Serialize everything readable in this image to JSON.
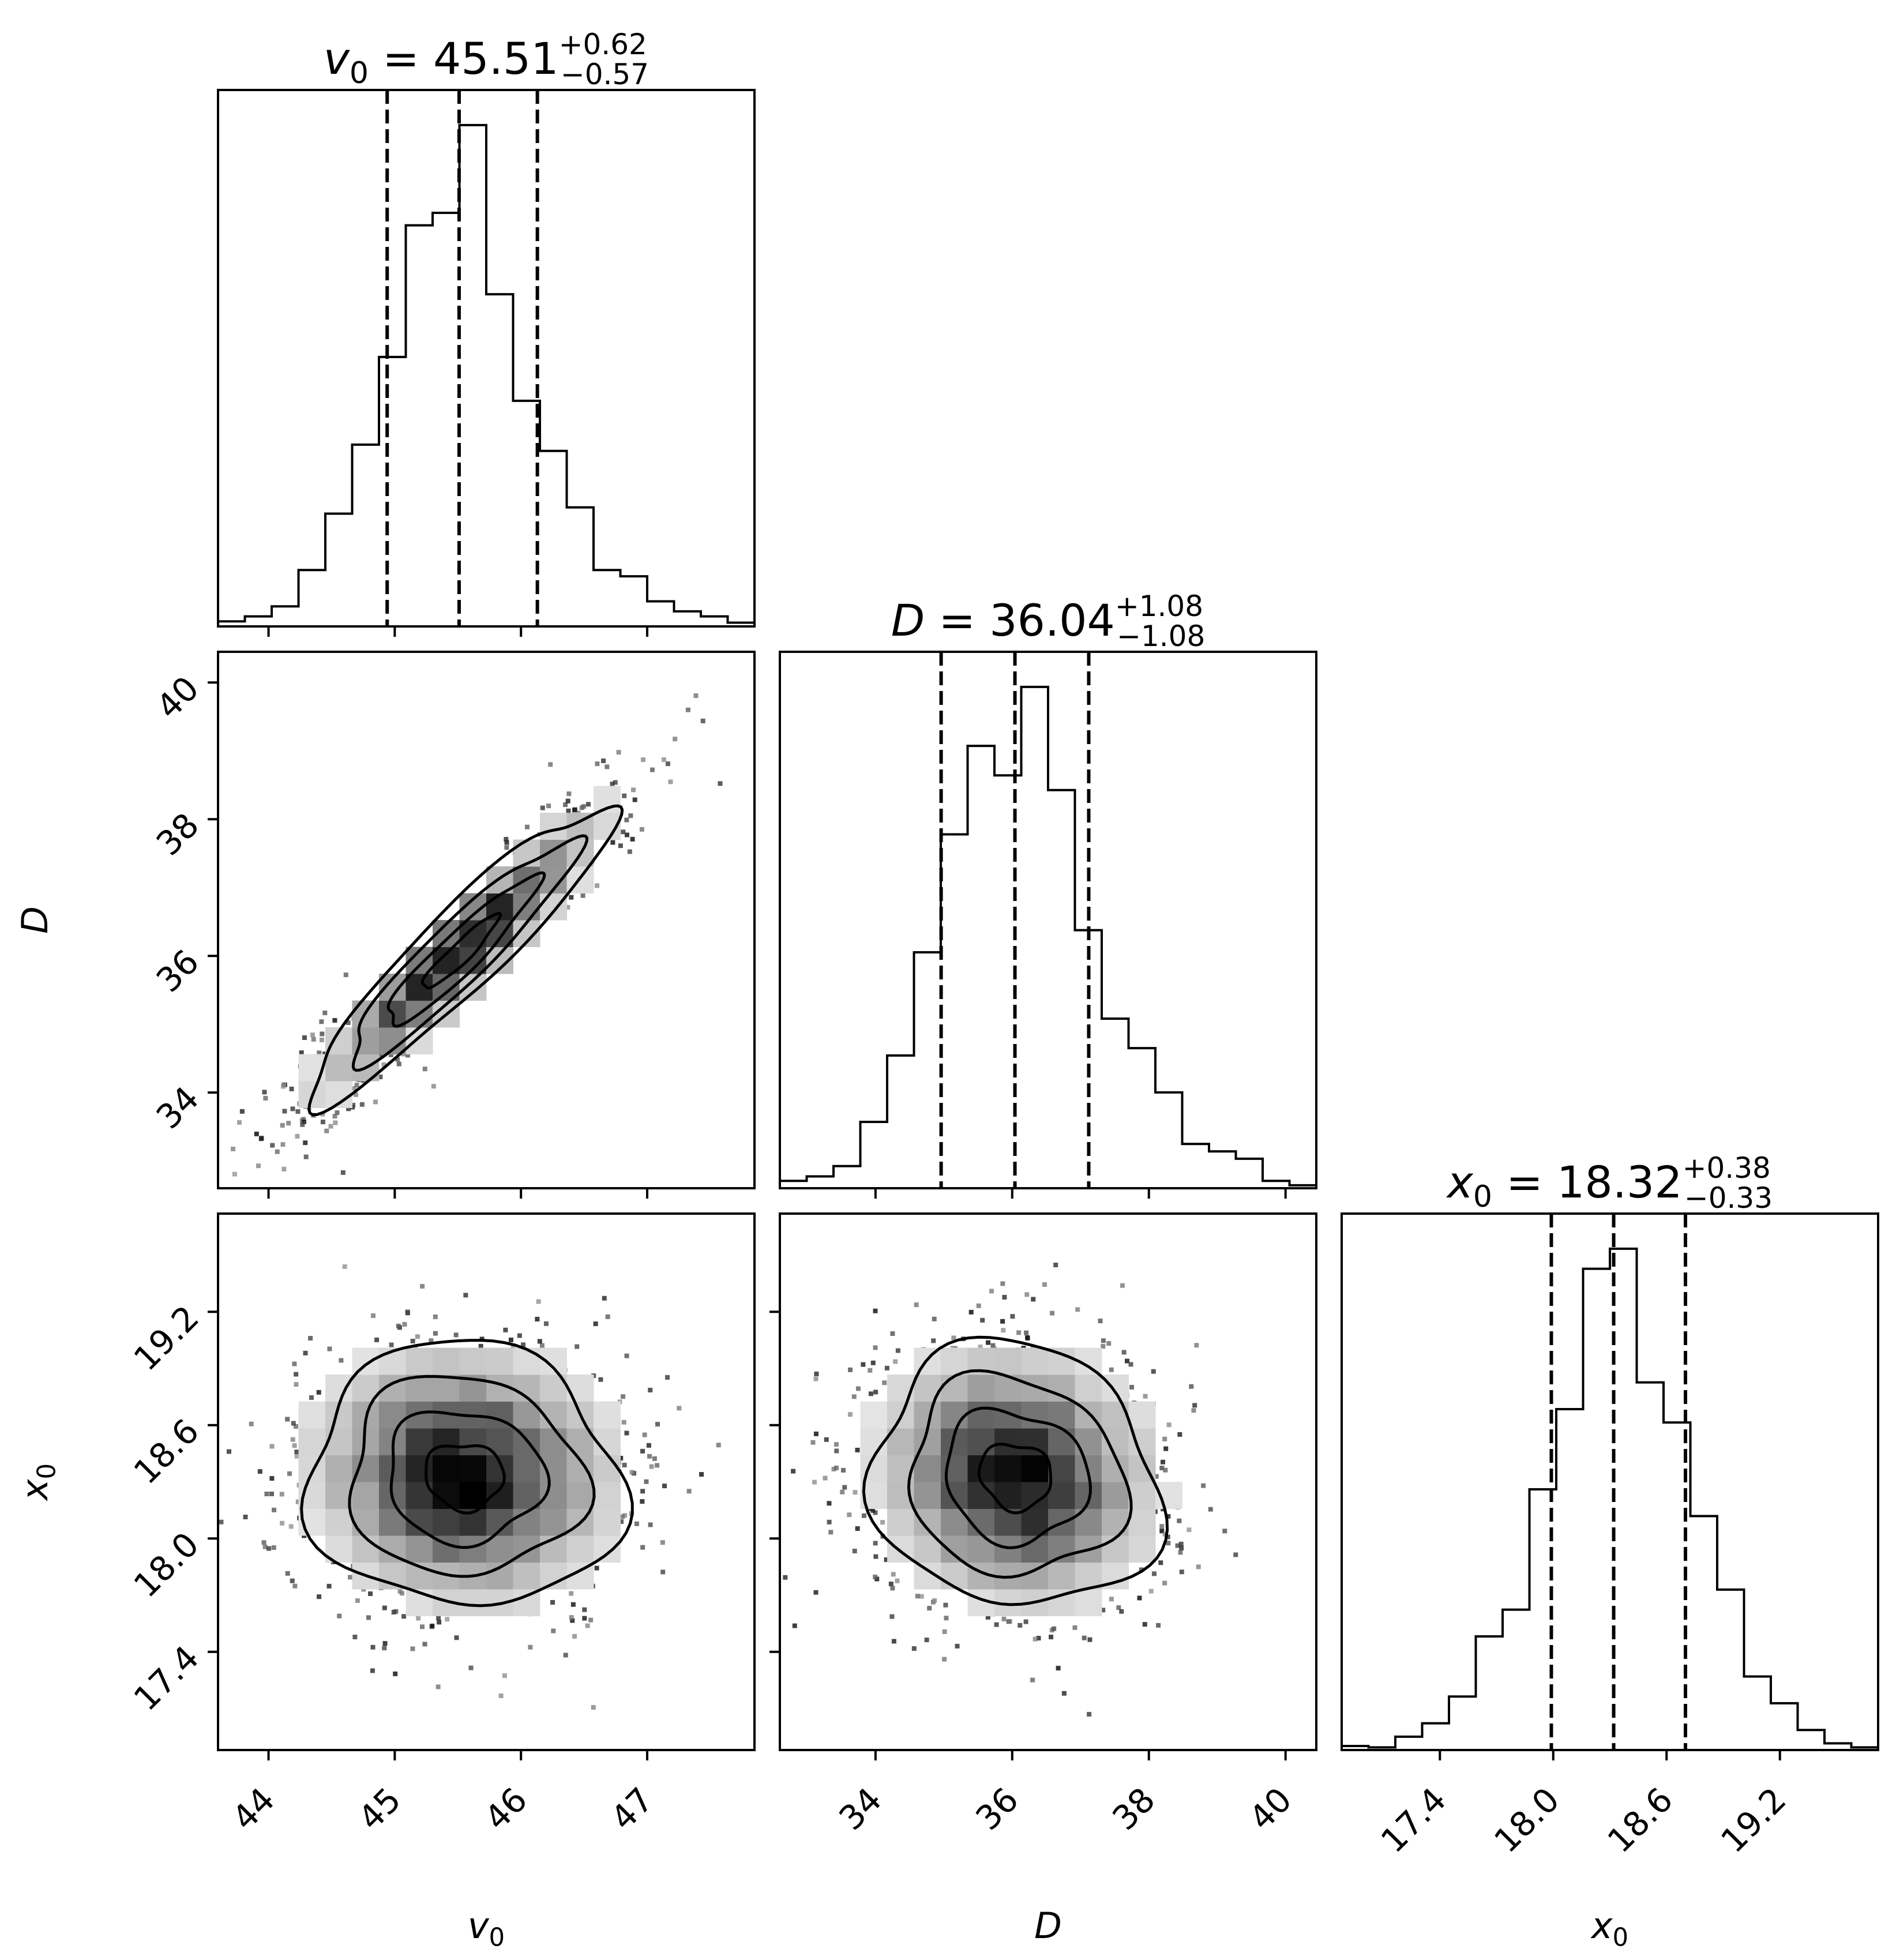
{
  "chart_data": {
    "type": "corner",
    "parameters": [
      {
        "key": "v0",
        "symbol": "v",
        "subscript": "0",
        "median": "45.51",
        "plus": "+0.62",
        "minus": "−0.57",
        "range": [
          43.6,
          47.85
        ],
        "ticks": [
          "44",
          "45",
          "46",
          "47"
        ],
        "quantiles": [
          44.94,
          45.51,
          46.13
        ]
      },
      {
        "key": "D",
        "symbol": "D",
        "subscript": "",
        "median": "36.04",
        "plus": "+1.08",
        "minus": "−1.08",
        "range": [
          32.6,
          40.45
        ],
        "ticks": [
          "34",
          "36",
          "38",
          "40"
        ],
        "quantiles": [
          34.96,
          36.04,
          37.12
        ]
      },
      {
        "key": "x0",
        "symbol": "x",
        "subscript": "0",
        "median": "18.32",
        "plus": "+0.38",
        "minus": "−0.33",
        "range": [
          16.88,
          19.72
        ],
        "ticks": [
          "17.4",
          "18.0",
          "18.6",
          "19.2"
        ],
        "quantiles": [
          17.99,
          18.32,
          18.7
        ]
      }
    ],
    "title_separator": "=",
    "histograms": [
      {
        "param": "v0",
        "bins": 20,
        "counts": [
          4,
          8,
          16,
          45,
          90,
          145,
          215,
          320,
          330,
          400,
          265,
          180,
          140,
          95,
          45,
          40,
          20,
          12,
          8,
          3
        ]
      },
      {
        "param": "D",
        "bins": 20,
        "counts": [
          5,
          8,
          15,
          45,
          90,
          160,
          240,
          300,
          280,
          340,
          270,
          175,
          115,
          95,
          65,
          30,
          25,
          20,
          5,
          2
        ]
      },
      {
        "param": "x0",
        "bins": 20,
        "counts": [
          3,
          2,
          10,
          20,
          40,
          85,
          105,
          195,
          255,
          360,
          375,
          275,
          245,
          175,
          120,
          55,
          35,
          15,
          5,
          2
        ]
      }
    ],
    "scatter_panels": [
      {
        "x": "v0",
        "y": "D",
        "correlation": 0.93,
        "center": [
          45.52,
          36.05
        ],
        "spread": [
          0.6,
          1.08
        ]
      },
      {
        "x": "v0",
        "y": "x0",
        "correlation": -0.05,
        "center": [
          45.55,
          18.33
        ],
        "spread": [
          0.62,
          0.35
        ]
      },
      {
        "x": "D",
        "y": "x0",
        "correlation": -0.1,
        "center": [
          36.05,
          18.33
        ],
        "spread": [
          1.05,
          0.35
        ]
      }
    ],
    "quantile_line_style": "dashed",
    "grid": false
  }
}
